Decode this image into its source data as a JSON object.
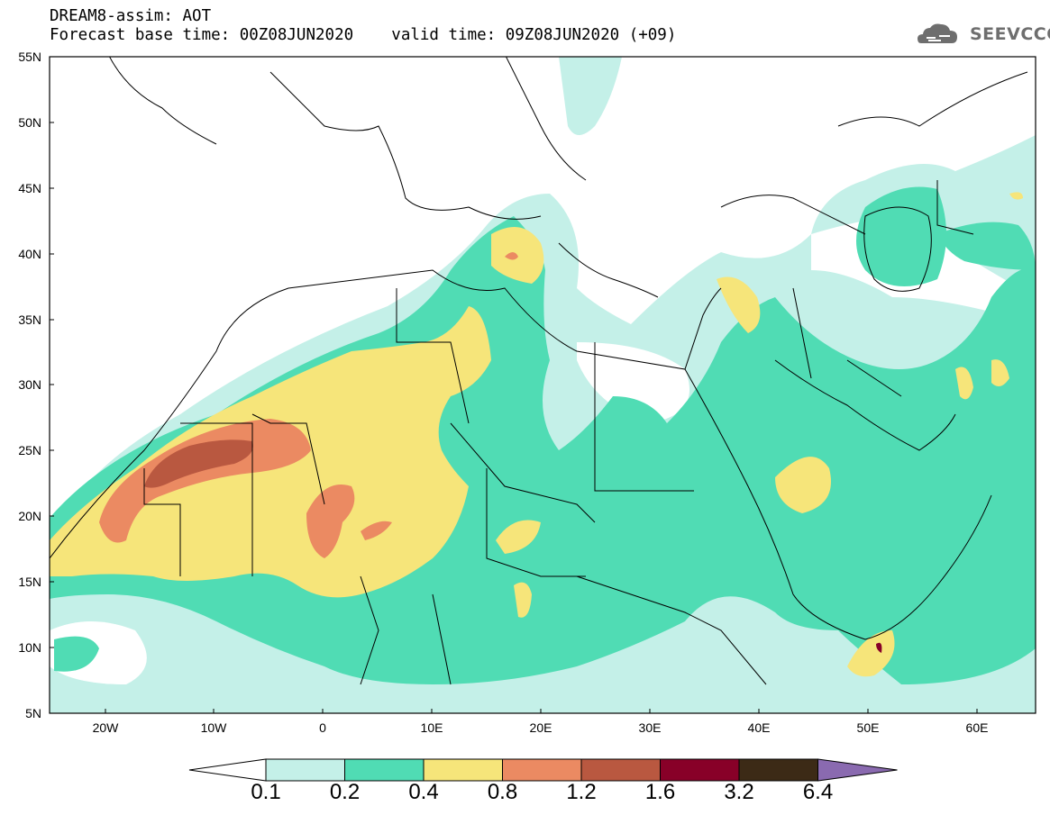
{
  "header": {
    "title_line1": "DREAM8-assim: AOT",
    "title_line2": "Forecast base time: 00Z08JUN2020    valid time: 09Z08JUN2020 (+09)",
    "logo_text": "SEEVCCC"
  },
  "map": {
    "lat_labels": [
      "55N",
      "50N",
      "45N",
      "40N",
      "35N",
      "30N",
      "25N",
      "20N",
      "15N",
      "10N",
      "5N"
    ],
    "lon_labels": [
      "20W",
      "10W",
      "0",
      "10E",
      "20E",
      "30E",
      "40E",
      "50E",
      "60E"
    ],
    "extent": {
      "lon_min": -25,
      "lon_max": 65,
      "lat_min": 5,
      "lat_max": 55
    }
  },
  "legend": {
    "thresholds": [
      "0.1",
      "0.2",
      "0.4",
      "0.8",
      "1.2",
      "1.6",
      "3.2",
      "6.4"
    ],
    "colors": [
      "#ffffff",
      "#c4f0e8",
      "#50dcb4",
      "#f6e57a",
      "#eb8a62",
      "#b95840",
      "#880028",
      "#3c2a16",
      "#8a6ab0"
    ]
  }
}
